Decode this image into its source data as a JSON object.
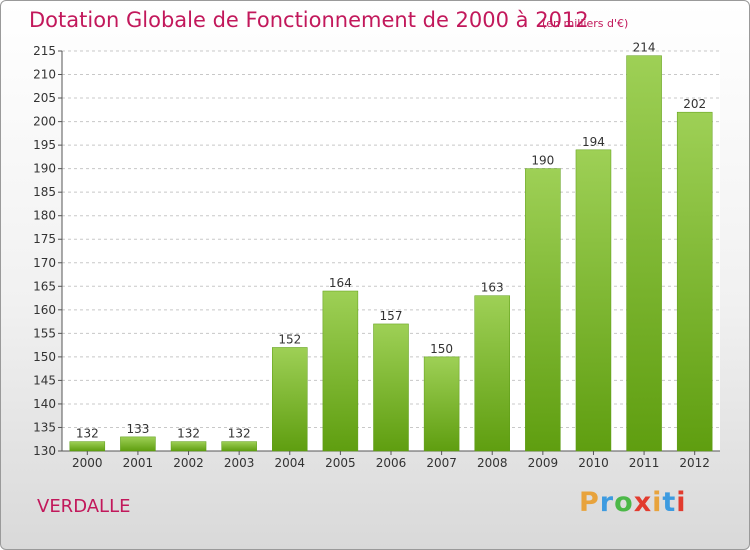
{
  "chart_data": {
    "type": "bar",
    "title": "Dotation Globale de Fonctionnement de 2000 à 2012",
    "unit": "(en milliers d'€)",
    "categories": [
      "2000",
      "2001",
      "2002",
      "2003",
      "2004",
      "2005",
      "2006",
      "2007",
      "2008",
      "2009",
      "2010",
      "2011",
      "2012"
    ],
    "values": [
      132,
      133,
      132,
      132,
      152,
      164,
      157,
      150,
      163,
      190,
      194,
      214,
      202
    ],
    "ylim": [
      130,
      215
    ],
    "yticks": [
      130,
      135,
      140,
      145,
      150,
      155,
      160,
      165,
      170,
      175,
      180,
      185,
      190,
      195,
      200,
      205,
      210,
      215
    ],
    "grid": true,
    "bar_color": "#7cbb2e",
    "title_color": "#c2185b"
  },
  "commune": "VERDALLE",
  "logo": {
    "letters": [
      "P",
      "r",
      "o",
      "x",
      "i",
      "t",
      "i"
    ],
    "colors": [
      "#e8a33c",
      "#3d9be0",
      "#4cb848",
      "#e23b2e",
      "#e8a33c",
      "#3d9be0",
      "#e23b2e"
    ]
  }
}
